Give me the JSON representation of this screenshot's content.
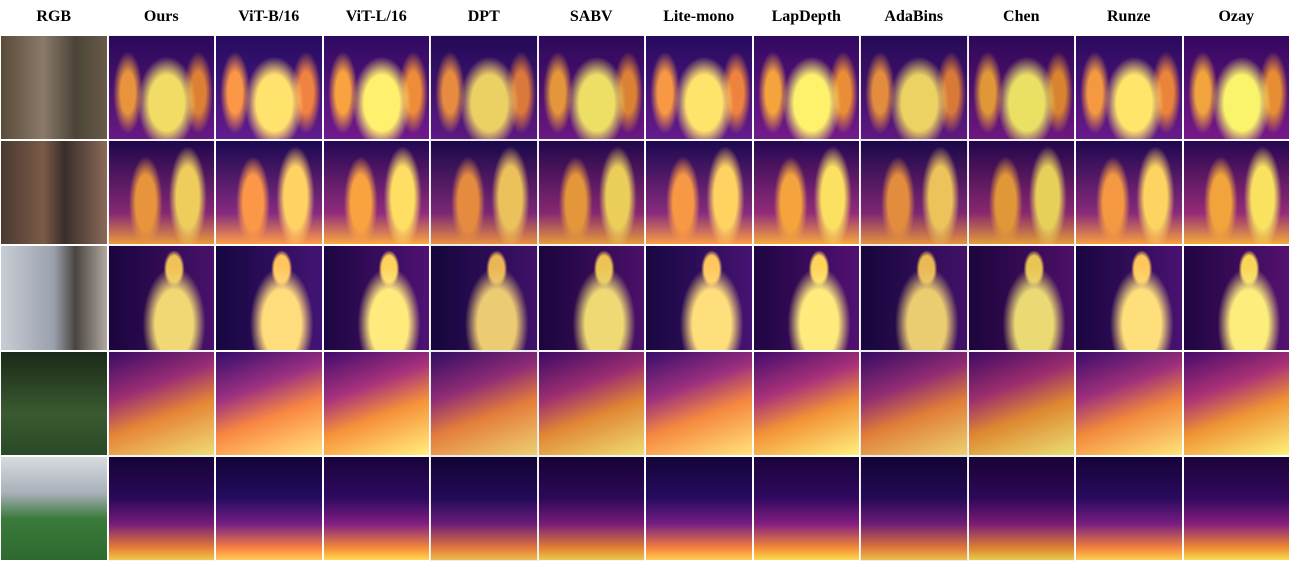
{
  "figure": {
    "columns": [
      "RGB",
      "Ours",
      "ViT-B/16",
      "ViT-L/16",
      "DPT",
      "SABV",
      "Lite-mono",
      "LapDepth",
      "AdaBins",
      "Chen",
      "Runze",
      "Ozay"
    ]
  }
}
